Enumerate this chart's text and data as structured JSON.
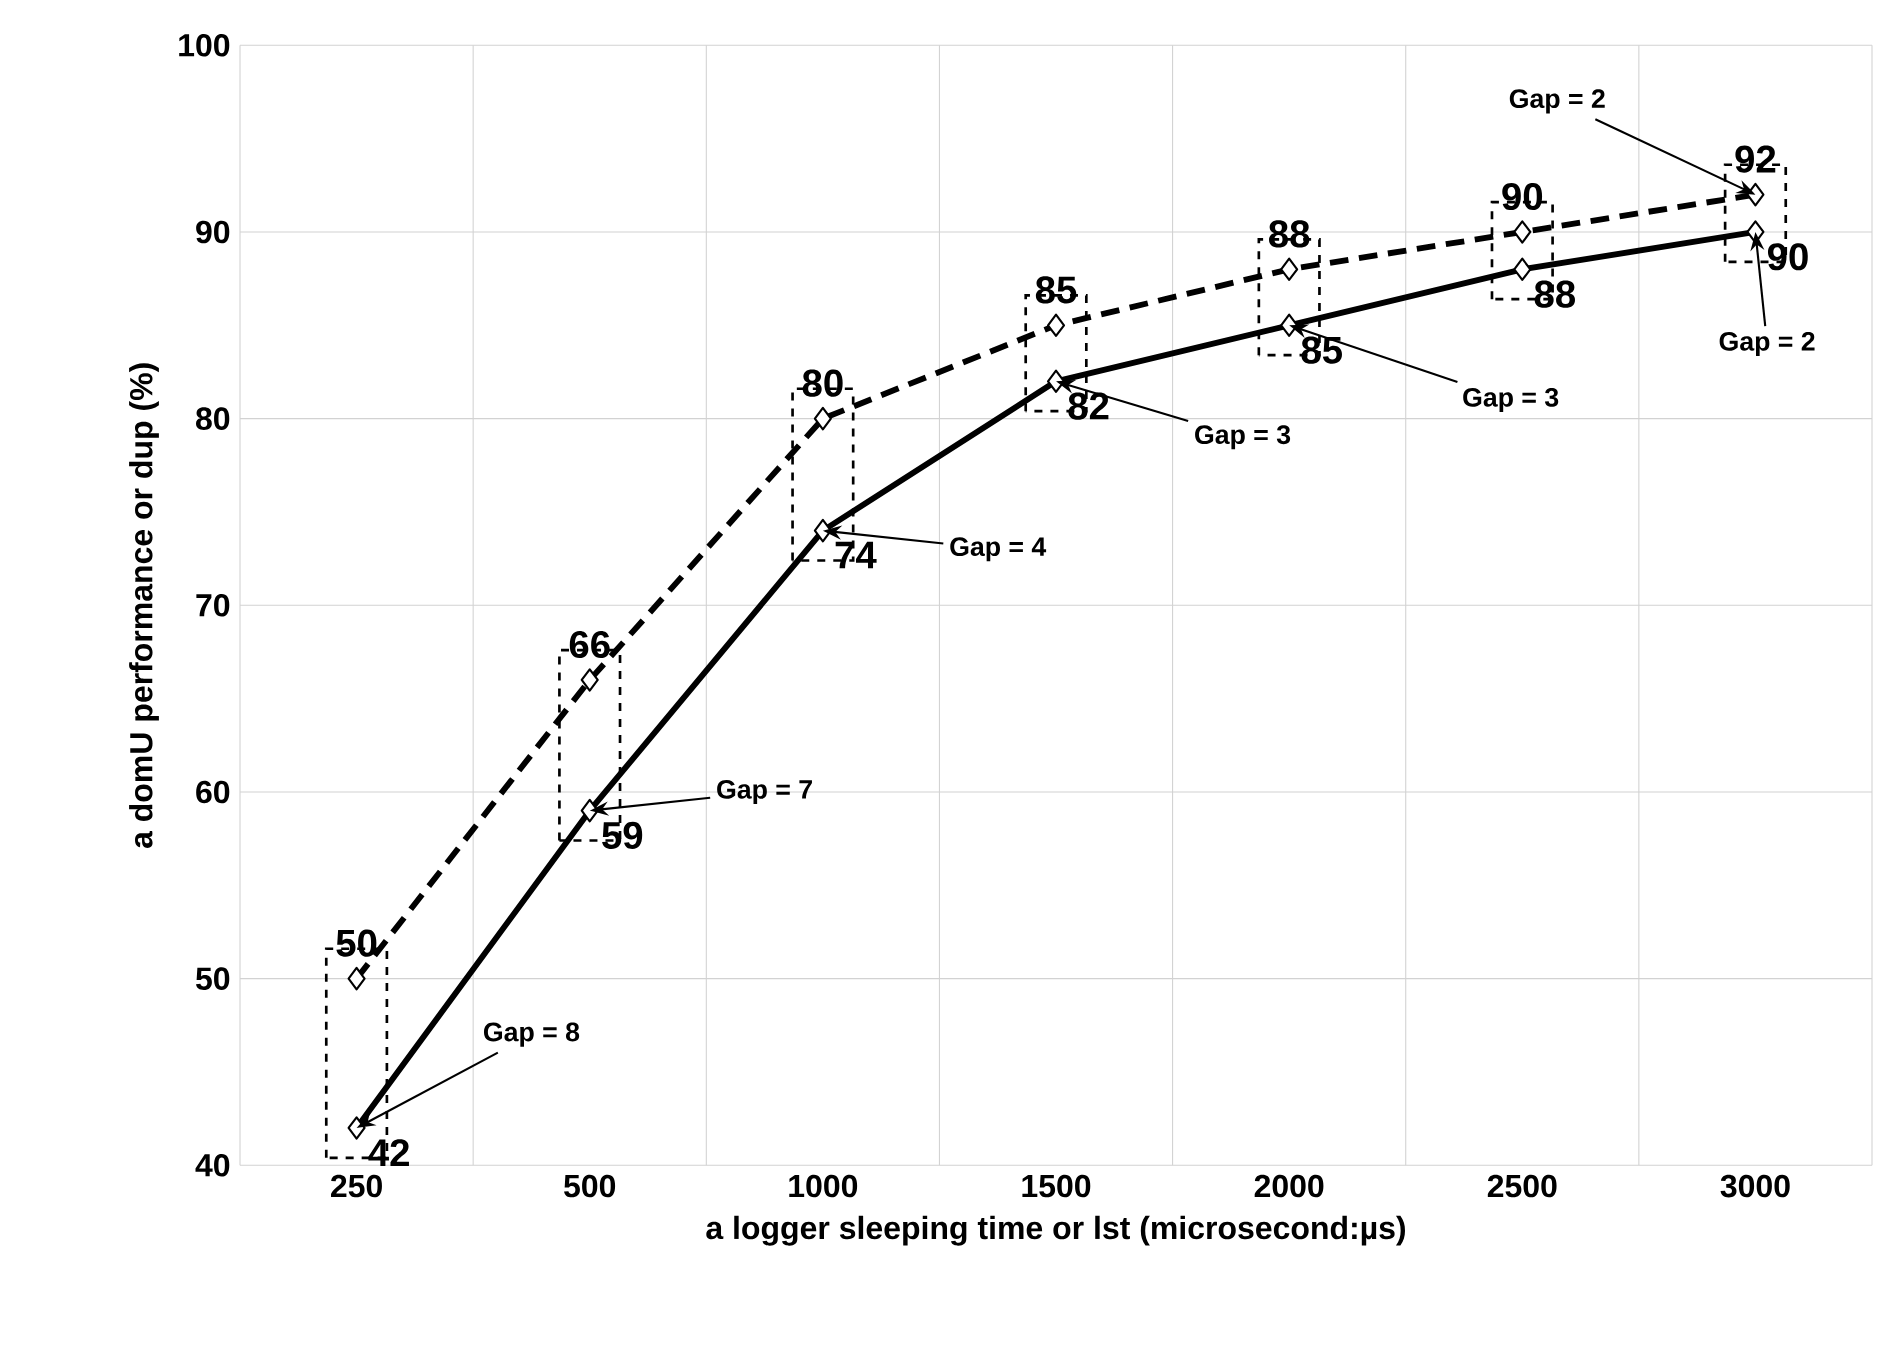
{
  "chart_data": {
    "type": "line",
    "xlabel": "a logger sleeping time or lst (microsecond:µs)",
    "ylabel": "a domU performance or dup (%)",
    "categories": [
      "250",
      "500",
      "1000",
      "1500",
      "2000",
      "2500",
      "3000"
    ],
    "series": [
      {
        "color": "#000000",
        "line_style": "dashed",
        "values": [
          50,
          66,
          80,
          85,
          88,
          90,
          92
        ]
      },
      {
        "color": "#000000",
        "line_style": "solid",
        "values": [
          42,
          59,
          74,
          82,
          85,
          88,
          90
        ]
      }
    ],
    "ylim": [
      40,
      100
    ],
    "yticks": [
      40,
      50,
      60,
      70,
      80,
      90,
      100
    ],
    "grid": true,
    "marker": "diamond",
    "data_labels": true,
    "annotations": [
      {
        "text": "Gap = 8",
        "x": "250",
        "y": 42
      },
      {
        "text": "Gap = 7",
        "x": "500",
        "y": 59
      },
      {
        "text": "Gap = 4",
        "x": "1000",
        "y": 74
      },
      {
        "text": "Gap = 3",
        "x": "1500",
        "y": 82
      },
      {
        "text": "Gap = 3",
        "x": "2000",
        "y": 85
      },
      {
        "text": "Gap = 2",
        "x": "3000",
        "y": 90
      },
      {
        "text": "Gap = 2",
        "x": "3000",
        "y": 92
      }
    ]
  }
}
